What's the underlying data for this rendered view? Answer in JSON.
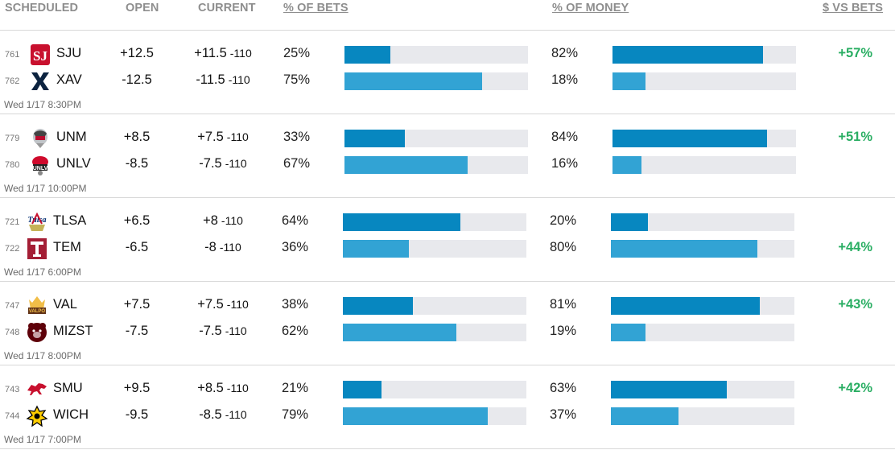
{
  "header": {
    "scheduled": "SCHEDULED",
    "open": "OPEN",
    "current": "CURRENT",
    "pct_bets": "% OF BETS",
    "pct_money": "% OF MONEY",
    "money_vs_bets": "$ VS BETS"
  },
  "colors": {
    "bar_top": "#0787c0",
    "bar_bottom": "#32a3d4",
    "track": "#e8e9ed",
    "positive": "#2aae63"
  },
  "games": [
    {
      "time": "Wed 1/17 8:30PM",
      "teams": [
        {
          "rot": "761",
          "abbr": "SJU",
          "logo": "sju-logo",
          "open": "+12.5",
          "current": "+11.5",
          "juice": "-110",
          "bets_pct": "25%",
          "bets": 25,
          "money_pct": "82%",
          "money": 82,
          "diff": "+57%"
        },
        {
          "rot": "762",
          "abbr": "XAV",
          "logo": "xav-logo",
          "open": "-12.5",
          "current": "-11.5",
          "juice": "-110",
          "bets_pct": "75%",
          "bets": 75,
          "money_pct": "18%",
          "money": 18,
          "diff": ""
        }
      ]
    },
    {
      "time": "Wed 1/17 10:00PM",
      "teams": [
        {
          "rot": "779",
          "abbr": "UNM",
          "logo": "unm-logo",
          "open": "+8.5",
          "current": "+7.5",
          "juice": "-110",
          "bets_pct": "33%",
          "bets": 33,
          "money_pct": "84%",
          "money": 84,
          "diff": "+51%"
        },
        {
          "rot": "780",
          "abbr": "UNLV",
          "logo": "unlv-logo",
          "open": "-8.5",
          "current": "-7.5",
          "juice": "-110",
          "bets_pct": "67%",
          "bets": 67,
          "money_pct": "16%",
          "money": 16,
          "diff": ""
        }
      ]
    },
    {
      "time": "Wed 1/17 6:00PM",
      "teams": [
        {
          "rot": "721",
          "abbr": "TLSA",
          "logo": "tlsa-logo",
          "open": "+6.5",
          "current": "+8",
          "juice": "-110",
          "bets_pct": "64%",
          "bets": 64,
          "money_pct": "20%",
          "money": 20,
          "diff": ""
        },
        {
          "rot": "722",
          "abbr": "TEM",
          "logo": "tem-logo",
          "open": "-6.5",
          "current": "-8",
          "juice": "-110",
          "bets_pct": "36%",
          "bets": 36,
          "money_pct": "80%",
          "money": 80,
          "diff": "+44%"
        }
      ]
    },
    {
      "time": "Wed 1/17 8:00PM",
      "teams": [
        {
          "rot": "747",
          "abbr": "VAL",
          "logo": "val-logo",
          "open": "+7.5",
          "current": "+7.5",
          "juice": "-110",
          "bets_pct": "38%",
          "bets": 38,
          "money_pct": "81%",
          "money": 81,
          "diff": "+43%"
        },
        {
          "rot": "748",
          "abbr": "MIZST",
          "logo": "mizst-logo",
          "open": "-7.5",
          "current": "-7.5",
          "juice": "-110",
          "bets_pct": "62%",
          "bets": 62,
          "money_pct": "19%",
          "money": 19,
          "diff": ""
        }
      ]
    },
    {
      "time": "Wed 1/17 7:00PM",
      "teams": [
        {
          "rot": "743",
          "abbr": "SMU",
          "logo": "smu-logo",
          "open": "+9.5",
          "current": "+8.5",
          "juice": "-110",
          "bets_pct": "21%",
          "bets": 21,
          "money_pct": "63%",
          "money": 63,
          "diff": "+42%"
        },
        {
          "rot": "744",
          "abbr": "WICH",
          "logo": "wich-logo",
          "open": "-9.5",
          "current": "-8.5",
          "juice": "-110",
          "bets_pct": "79%",
          "bets": 79,
          "money_pct": "37%",
          "money": 37,
          "diff": ""
        }
      ]
    }
  ]
}
